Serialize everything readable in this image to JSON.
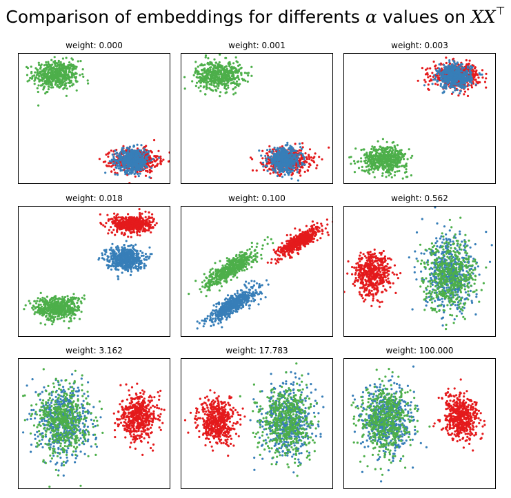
{
  "figure": {
    "title_prefix": "Comparison of embeddings for differents ",
    "title_alpha": "α",
    "title_mid": " values on ",
    "title_math": "XX",
    "title_sup": "⊤"
  },
  "colors": {
    "red": "#e41a1c",
    "blue": "#377eb8",
    "green": "#4daf4a"
  },
  "chart_data": [
    {
      "type": "scatter",
      "title": "weight: 0.000",
      "xlim": [
        0,
        1
      ],
      "ylim": [
        0,
        1
      ],
      "series": [
        {
          "color": "#4daf4a",
          "n": 500,
          "cx": 0.25,
          "cy": 0.83,
          "sx": 0.075,
          "sy": 0.055,
          "rho": 0
        },
        {
          "color": "#e41a1c",
          "n": 500,
          "cx": 0.77,
          "cy": 0.18,
          "sx": 0.075,
          "sy": 0.045,
          "rho": 0
        },
        {
          "color": "#377eb8",
          "n": 500,
          "cx": 0.75,
          "cy": 0.18,
          "sx": 0.055,
          "sy": 0.045,
          "rho": 0
        }
      ]
    },
    {
      "type": "scatter",
      "title": "weight: 0.001",
      "xlim": [
        0,
        1
      ],
      "ylim": [
        0,
        1
      ],
      "series": [
        {
          "color": "#4daf4a",
          "n": 500,
          "cx": 0.25,
          "cy": 0.83,
          "sx": 0.075,
          "sy": 0.055,
          "rho": 0
        },
        {
          "color": "#e41a1c",
          "n": 500,
          "cx": 0.7,
          "cy": 0.18,
          "sx": 0.075,
          "sy": 0.045,
          "rho": 0
        },
        {
          "color": "#377eb8",
          "n": 500,
          "cx": 0.68,
          "cy": 0.18,
          "sx": 0.055,
          "sy": 0.045,
          "rho": 0
        }
      ]
    },
    {
      "type": "scatter",
      "title": "weight: 0.003",
      "xlim": [
        0,
        1
      ],
      "ylim": [
        0,
        1
      ],
      "series": [
        {
          "color": "#e41a1c",
          "n": 500,
          "cx": 0.74,
          "cy": 0.83,
          "sx": 0.075,
          "sy": 0.045,
          "rho": 0
        },
        {
          "color": "#377eb8",
          "n": 500,
          "cx": 0.73,
          "cy": 0.82,
          "sx": 0.055,
          "sy": 0.045,
          "rho": 0
        },
        {
          "color": "#4daf4a",
          "n": 500,
          "cx": 0.27,
          "cy": 0.19,
          "sx": 0.075,
          "sy": 0.05,
          "rho": 0
        }
      ]
    },
    {
      "type": "scatter",
      "title": "weight: 0.018",
      "xlim": [
        0,
        1
      ],
      "ylim": [
        0,
        1
      ],
      "series": [
        {
          "color": "#e41a1c",
          "n": 500,
          "cx": 0.75,
          "cy": 0.86,
          "sx": 0.065,
          "sy": 0.035,
          "rho": 0
        },
        {
          "color": "#377eb8",
          "n": 500,
          "cx": 0.7,
          "cy": 0.6,
          "sx": 0.06,
          "sy": 0.045,
          "rho": 0
        },
        {
          "color": "#4daf4a",
          "n": 500,
          "cx": 0.26,
          "cy": 0.22,
          "sx": 0.075,
          "sy": 0.045,
          "rho": 0
        }
      ]
    },
    {
      "type": "scatter",
      "title": "weight: 0.100",
      "xlim": [
        0,
        1
      ],
      "ylim": [
        0,
        1
      ],
      "series": [
        {
          "color": "#e41a1c",
          "n": 500,
          "cx": 0.78,
          "cy": 0.73,
          "sx": 0.07,
          "sy": 0.06,
          "rho": 0.85
        },
        {
          "color": "#4daf4a",
          "n": 500,
          "cx": 0.33,
          "cy": 0.52,
          "sx": 0.085,
          "sy": 0.07,
          "rho": 0.85
        },
        {
          "color": "#377eb8",
          "n": 500,
          "cx": 0.35,
          "cy": 0.25,
          "sx": 0.085,
          "sy": 0.07,
          "rho": 0.85
        }
      ]
    },
    {
      "type": "scatter",
      "title": "weight: 0.562",
      "xlim": [
        0,
        1
      ],
      "ylim": [
        0,
        1
      ],
      "series": [
        {
          "color": "#e41a1c",
          "n": 500,
          "cx": 0.19,
          "cy": 0.48,
          "sx": 0.06,
          "sy": 0.085,
          "rho": 0
        },
        {
          "color": "#377eb8",
          "n": 500,
          "cx": 0.7,
          "cy": 0.47,
          "sx": 0.085,
          "sy": 0.135,
          "rho": 0
        },
        {
          "color": "#4daf4a",
          "n": 500,
          "cx": 0.7,
          "cy": 0.47,
          "sx": 0.085,
          "sy": 0.135,
          "rho": 0
        }
      ]
    },
    {
      "type": "scatter",
      "title": "weight: 3.162",
      "xlim": [
        0,
        1
      ],
      "ylim": [
        0,
        1
      ],
      "series": [
        {
          "color": "#377eb8",
          "n": 500,
          "cx": 0.3,
          "cy": 0.52,
          "sx": 0.085,
          "sy": 0.135,
          "rho": 0
        },
        {
          "color": "#4daf4a",
          "n": 500,
          "cx": 0.3,
          "cy": 0.52,
          "sx": 0.085,
          "sy": 0.135,
          "rho": 0
        },
        {
          "color": "#e41a1c",
          "n": 500,
          "cx": 0.79,
          "cy": 0.55,
          "sx": 0.06,
          "sy": 0.085,
          "rho": 0
        }
      ]
    },
    {
      "type": "scatter",
      "title": "weight: 17.783",
      "xlim": [
        0,
        1
      ],
      "ylim": [
        0,
        1
      ],
      "series": [
        {
          "color": "#e41a1c",
          "n": 500,
          "cx": 0.24,
          "cy": 0.52,
          "sx": 0.06,
          "sy": 0.085,
          "rho": 0
        },
        {
          "color": "#377eb8",
          "n": 500,
          "cx": 0.7,
          "cy": 0.52,
          "sx": 0.085,
          "sy": 0.135,
          "rho": 0
        },
        {
          "color": "#4daf4a",
          "n": 500,
          "cx": 0.7,
          "cy": 0.52,
          "sx": 0.085,
          "sy": 0.135,
          "rho": 0
        }
      ]
    },
    {
      "type": "scatter",
      "title": "weight: 100.000",
      "xlim": [
        0,
        1
      ],
      "ylim": [
        0,
        1
      ],
      "series": [
        {
          "color": "#377eb8",
          "n": 500,
          "cx": 0.28,
          "cy": 0.52,
          "sx": 0.085,
          "sy": 0.135,
          "rho": 0
        },
        {
          "color": "#4daf4a",
          "n": 500,
          "cx": 0.28,
          "cy": 0.52,
          "sx": 0.085,
          "sy": 0.135,
          "rho": 0
        },
        {
          "color": "#e41a1c",
          "n": 500,
          "cx": 0.77,
          "cy": 0.55,
          "sx": 0.06,
          "sy": 0.085,
          "rho": 0
        }
      ]
    }
  ]
}
